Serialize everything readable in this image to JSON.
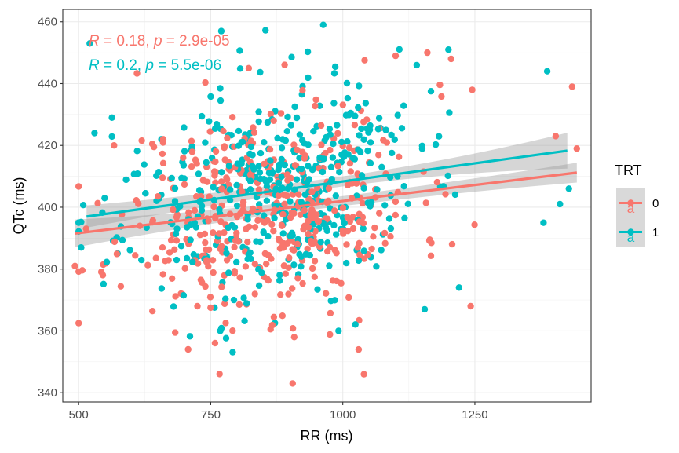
{
  "chart_data": {
    "type": "scatter",
    "title": "",
    "xlabel": "RR (ms)",
    "ylabel": "QTc (ms)",
    "xlim": [
      470,
      1470
    ],
    "ylim": [
      337,
      464
    ],
    "x_ticks": [
      500,
      750,
      1000,
      1250
    ],
    "y_ticks": [
      340,
      360,
      380,
      400,
      420,
      440,
      460
    ],
    "grid": true,
    "legend": {
      "title": "TRT",
      "position": "right",
      "entries": [
        "0",
        "1"
      ],
      "glyph": "a"
    },
    "annotations": [
      {
        "series": "0",
        "r_label": "R",
        "r_text": " = 0.18, ",
        "p_label": "p",
        "p_text": " = 2.9e-05"
      },
      {
        "series": "1",
        "r_label": "R",
        "r_text": " = 0.2, ",
        "p_label": "p",
        "p_text": " = 5.5e-06"
      }
    ],
    "series": [
      {
        "name": "0",
        "color": "#F8766D",
        "regression": {
          "x": [
            493,
            1443
          ],
          "y": [
            391.5,
            411.2
          ],
          "band_halfwidth": [
            4.5,
            3.2
          ]
        },
        "points_sample_notable": [
          [
            493,
            381
          ],
          [
            567,
            420
          ],
          [
            905,
            343
          ],
          [
            1040,
            346
          ],
          [
            1030,
            354
          ],
          [
            1242,
            368
          ],
          [
            1443,
            419
          ],
          [
            1434,
            439
          ],
          [
            1403,
            423
          ],
          [
            1245,
            438
          ],
          [
            1100,
            449
          ],
          [
            1160,
            450
          ],
          [
            1205,
            448
          ],
          [
            908,
            358
          ],
          [
            822,
            445
          ]
        ],
        "n_points": 440,
        "seed": 11
      },
      {
        "name": "1",
        "color": "#00BFC4",
        "regression": {
          "x": [
            515,
            1425
          ],
          "y": [
            397.0,
            418.3
          ],
          "band_halfwidth": [
            3.6,
            5.8
          ]
        },
        "points_sample_notable": [
          [
            521,
            453
          ],
          [
            530,
            424
          ],
          [
            563,
            429
          ],
          [
            963,
            459
          ],
          [
            992,
            360
          ],
          [
            768,
            360
          ],
          [
            770,
            457
          ],
          [
            1155,
            367
          ],
          [
            1220,
            374
          ],
          [
            1380,
            395
          ],
          [
            1411,
            401
          ],
          [
            1428,
            406
          ],
          [
            1387,
            444
          ],
          [
            1200,
            451
          ],
          [
            1140,
            446
          ]
        ],
        "n_points": 440,
        "seed": 23
      }
    ]
  }
}
